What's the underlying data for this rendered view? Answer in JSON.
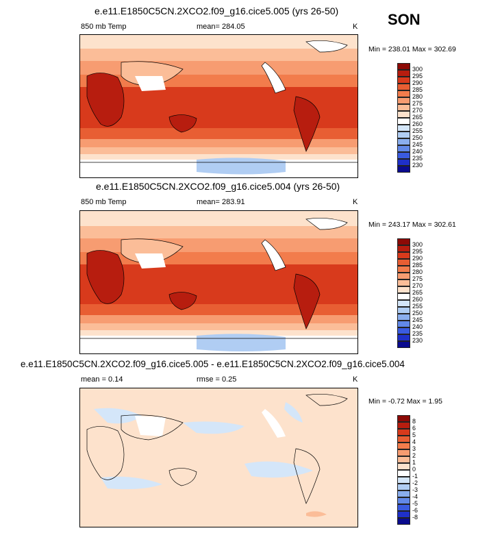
{
  "season": "SON",
  "panels": [
    {
      "title": "e.e11.E1850C5CN.2XCO2.f09_g16.cice5.005 (yrs 26-50)",
      "left_label": "850 mb Temp",
      "center_label": "mean= 284.05",
      "unit": "K",
      "minmax": "Min = 238.01 Max = 302.69",
      "colorbar": [
        "300",
        "295",
        "290",
        "285",
        "280",
        "275",
        "270",
        "265",
        "260",
        "255",
        "250",
        "245",
        "240",
        "235",
        "230"
      ],
      "colors": [
        "#8c0a06",
        "#b71d0f",
        "#d83a1c",
        "#e85e33",
        "#f27c4c",
        "#f79c71",
        "#fbbd98",
        "#fde2cc",
        "#ffffff",
        "#d4e6f9",
        "#b0cdf3",
        "#8aaeee",
        "#6289e8",
        "#3a5be0",
        "#1f30c9",
        "#0a0b8e"
      ]
    },
    {
      "title": "e.e11.E1850C5CN.2XCO2.f09_g16.cice5.004 (yrs 26-50)",
      "left_label": "850 mb Temp",
      "center_label": "mean= 283.91",
      "unit": "K",
      "minmax": "Min = 243.17 Max = 302.61",
      "colorbar": [
        "300",
        "295",
        "290",
        "285",
        "280",
        "275",
        "270",
        "265",
        "260",
        "255",
        "250",
        "245",
        "240",
        "235",
        "230"
      ],
      "colors": [
        "#8c0a06",
        "#b71d0f",
        "#d83a1c",
        "#e85e33",
        "#f27c4c",
        "#f79c71",
        "#fbbd98",
        "#fde2cc",
        "#ffffff",
        "#d4e6f9",
        "#b0cdf3",
        "#8aaeee",
        "#6289e8",
        "#3a5be0",
        "#1f30c9",
        "#0a0b8e"
      ]
    },
    {
      "title": "e.e11.E1850C5CN.2XCO2.f09_g16.cice5.005 - e.e11.E1850C5CN.2XCO2.f09_g16.cice5.004",
      "left_label": "mean =  0.14",
      "center_label": "rmse =  0.25",
      "unit": "K",
      "minmax": "Min =  -0.72 Max =   1.95",
      "colorbar": [
        "8",
        "6",
        "5",
        "4",
        "3",
        "2",
        "1",
        "0",
        "-1",
        "-2",
        "-3",
        "-4",
        "-5",
        "-6",
        "-8"
      ],
      "colors": [
        "#8c0a06",
        "#b71d0f",
        "#d83a1c",
        "#e85e33",
        "#f27c4c",
        "#f79c71",
        "#fbbd98",
        "#fde2cc",
        "#ffffff",
        "#d4e6f9",
        "#b0cdf3",
        "#8aaeee",
        "#6289e8",
        "#3a5be0",
        "#1f30c9",
        "#0a0b8e"
      ]
    }
  ]
}
